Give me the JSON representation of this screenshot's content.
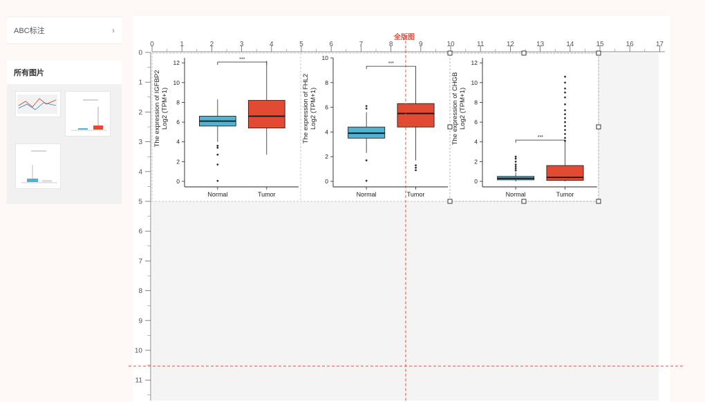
{
  "sidebar": {
    "abc_label": "ABC标注",
    "all_images_title": "所有图片"
  },
  "canvas": {
    "full_page_label": "全版图",
    "ruler_top_ticks": [
      "0",
      "1",
      "2",
      "3",
      "4",
      "5",
      "6",
      "7",
      "8",
      "9",
      "10",
      "11",
      "12",
      "13",
      "14",
      "15",
      "16",
      "17"
    ],
    "ruler_left_ticks": [
      "0",
      "1",
      "2",
      "3",
      "4",
      "5",
      "6",
      "7",
      "8",
      "9",
      "10",
      "11"
    ]
  },
  "colors": {
    "normal": "#4fb3d4",
    "tumor": "#e24a33",
    "guide": "#e74c3c"
  },
  "chart_data": [
    {
      "type": "box",
      "categories": [
        "Normal",
        "Tumor"
      ],
      "ylabel": "The expression of IGFBP2 Log2 (TPM+1)",
      "ylim": [
        0,
        12.5
      ],
      "yticks": [
        0,
        2,
        4,
        6,
        8,
        10,
        12
      ],
      "significance": "***",
      "boxes": [
        {
          "name": "Normal",
          "q1": 5.6,
          "median": 6.1,
          "q3": 6.6,
          "whisker_low": 4.0,
          "whisker_high": 8.3,
          "outliers": [
            3.6,
            3.4,
            2.7,
            1.7,
            0.05
          ]
        },
        {
          "name": "Tumor",
          "q1": 5.4,
          "median": 6.6,
          "q3": 8.2,
          "whisker_low": 2.7,
          "whisker_high": 12.2,
          "outliers": []
        }
      ]
    },
    {
      "type": "box",
      "categories": [
        "Normal",
        "Tumor"
      ],
      "ylabel": "The expression of FHL2 Log2 (TPM+1)",
      "ylim": [
        0,
        10
      ],
      "yticks": [
        0,
        2,
        4,
        6,
        8,
        10
      ],
      "significance": "***",
      "boxes": [
        {
          "name": "Normal",
          "q1": 3.5,
          "median": 3.9,
          "q3": 4.4,
          "whisker_low": 2.3,
          "whisker_high": 5.6,
          "outliers": [
            6.1,
            5.9,
            1.7,
            0.05
          ]
        },
        {
          "name": "Tumor",
          "q1": 4.4,
          "median": 5.5,
          "q3": 6.3,
          "whisker_low": 1.7,
          "whisker_high": 9.1,
          "outliers": [
            1.3,
            1.1,
            0.9
          ]
        }
      ]
    },
    {
      "type": "box",
      "categories": [
        "Normal",
        "Tumor"
      ],
      "ylabel": "The expression of CHGB Log2 (TPM+1)",
      "ylim": [
        0,
        12.5
      ],
      "yticks": [
        0,
        2,
        4,
        6,
        8,
        10,
        12
      ],
      "significance": "***",
      "boxes": [
        {
          "name": "Normal",
          "q1": 0.15,
          "median": 0.3,
          "q3": 0.5,
          "whisker_low": 0.0,
          "whisker_high": 0.9,
          "outliers": [
            1.1,
            1.3,
            1.5,
            1.7,
            2.0,
            2.3,
            2.5
          ]
        },
        {
          "name": "Tumor",
          "q1": 0.1,
          "median": 0.4,
          "q3": 1.6,
          "whisker_low": 0.0,
          "whisker_high": 3.9,
          "outliers": [
            4.1,
            4.4,
            4.8,
            5.2,
            5.6,
            6.0,
            6.4,
            6.8,
            7.2,
            7.8,
            8.5,
            9.0,
            9.4,
            10.0,
            10.6
          ]
        }
      ]
    }
  ]
}
